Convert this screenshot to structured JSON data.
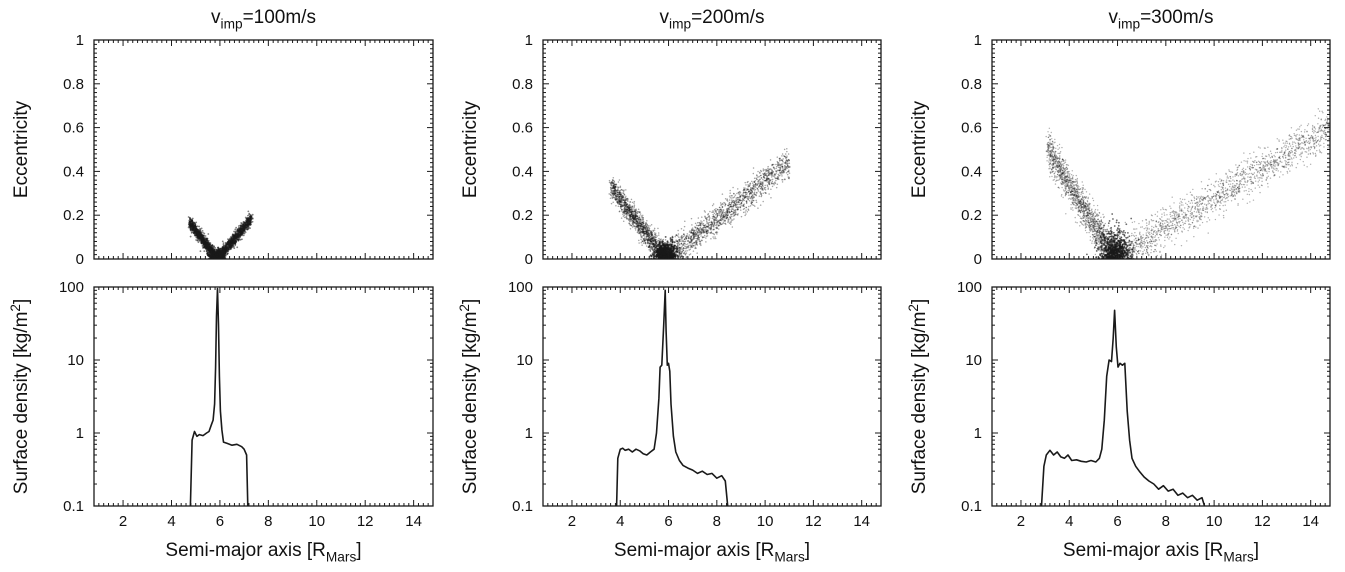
{
  "figure": {
    "ink_color": "#1a1a1a",
    "background": "#ffffff"
  },
  "chart_data": [
    {
      "type": "scatter",
      "panel": "top",
      "column": 0,
      "title_prefix": "v",
      "title_sub": "imp",
      "title_suffix": "=100m/s",
      "ylabel": "Eccentricity",
      "xlim": [
        0.8,
        14.8
      ],
      "ylim": [
        0,
        1
      ],
      "xticks": [
        2,
        4,
        6,
        8,
        10,
        12,
        14
      ],
      "yticks": [
        0,
        0.2,
        0.4,
        0.6,
        0.8,
        1
      ],
      "ytick_labels": [
        "0",
        "0.2",
        "0.4",
        "0.6",
        "0.8",
        "1"
      ],
      "show_xtick_labels": false,
      "grid": false,
      "point_cloud": {
        "center_a": 5.9,
        "center_e": 0.0,
        "left_arm": {
          "end_a": 4.75,
          "end_e": 0.165,
          "width_e": 0.03
        },
        "right_arm": {
          "end_a": 7.3,
          "end_e": 0.185,
          "width_e": 0.03
        },
        "core": {
          "half_width_a": 0.3,
          "max_e": 0.03
        },
        "density": "dense"
      }
    },
    {
      "type": "line",
      "panel": "bottom",
      "column": 0,
      "ylabel": "Surface density [kg/m",
      "ylabel_sup": "2",
      "ylabel_tail": "]",
      "xlabel": "Semi-major axis [R",
      "xlabel_sub": "Mars",
      "xlabel_tail": "]",
      "yscale": "log",
      "xlim": [
        0.8,
        14.8
      ],
      "ylim": [
        0.1,
        100
      ],
      "xticks": [
        2,
        4,
        6,
        8,
        10,
        12,
        14
      ],
      "xtick_labels": [
        "2",
        "4",
        "6",
        "8",
        "10",
        "12",
        "14"
      ],
      "yticks": [
        0.1,
        1,
        10,
        100
      ],
      "ytick_labels": [
        "0.1",
        "1",
        "10",
        "100"
      ],
      "grid": false,
      "series": [
        {
          "x": [
            4.78,
            4.85,
            4.95,
            5.05,
            5.15,
            5.3,
            5.45,
            5.55,
            5.65,
            5.72,
            5.78,
            5.82,
            5.86,
            5.9,
            5.94,
            5.98,
            6.02,
            6.08,
            6.15,
            6.3,
            6.5,
            6.7,
            6.9,
            7.0,
            7.1,
            7.15
          ],
          "y": [
            0.1,
            0.8,
            1.05,
            0.9,
            0.95,
            0.92,
            1.0,
            1.05,
            1.3,
            1.5,
            2.5,
            8,
            40,
            95,
            30,
            6,
            2,
            1.1,
            0.75,
            0.72,
            0.68,
            0.7,
            0.65,
            0.6,
            0.5,
            0.1
          ]
        }
      ]
    },
    {
      "type": "scatter",
      "panel": "top",
      "column": 1,
      "title_prefix": "v",
      "title_sub": "imp",
      "title_suffix": "=200m/s",
      "ylabel": "Eccentricity",
      "xlim": [
        0.8,
        14.8
      ],
      "ylim": [
        0,
        1
      ],
      "xticks": [
        2,
        4,
        6,
        8,
        10,
        12,
        14
      ],
      "yticks": [
        0,
        0.2,
        0.4,
        0.6,
        0.8,
        1
      ],
      "ytick_labels": [
        "0",
        "0.2",
        "0.4",
        "0.6",
        "0.8",
        "1"
      ],
      "show_xtick_labels": false,
      "grid": false,
      "point_cloud": {
        "center_a": 5.9,
        "center_e": 0.0,
        "left_arm": {
          "end_a": 3.6,
          "end_e": 0.33,
          "width_e": 0.06
        },
        "right_arm": {
          "end_a": 11.0,
          "end_e": 0.44,
          "width_e": 0.07
        },
        "core": {
          "half_width_a": 0.5,
          "max_e": 0.07
        },
        "density": "medium"
      }
    },
    {
      "type": "line",
      "panel": "bottom",
      "column": 1,
      "ylabel": "Surface density [kg/m",
      "ylabel_sup": "2",
      "ylabel_tail": "]",
      "xlabel": "Semi-major axis [R",
      "xlabel_sub": "Mars",
      "xlabel_tail": "]",
      "yscale": "log",
      "xlim": [
        0.8,
        14.8
      ],
      "ylim": [
        0.1,
        100
      ],
      "xticks": [
        2,
        4,
        6,
        8,
        10,
        12,
        14
      ],
      "xtick_labels": [
        "2",
        "4",
        "6",
        "8",
        "10",
        "12",
        "14"
      ],
      "yticks": [
        0.1,
        1,
        10,
        100
      ],
      "ytick_labels": [
        "0.1",
        "1",
        "10",
        "100"
      ],
      "grid": false,
      "series": [
        {
          "x": [
            3.85,
            3.9,
            4.0,
            4.1,
            4.2,
            4.35,
            4.5,
            4.65,
            4.8,
            4.95,
            5.1,
            5.25,
            5.4,
            5.5,
            5.6,
            5.65,
            5.72,
            5.8,
            5.86,
            5.9,
            5.95,
            6.0,
            6.05,
            6.1,
            6.2,
            6.3,
            6.45,
            6.6,
            6.8,
            7.0,
            7.2,
            7.4,
            7.6,
            7.8,
            8.0,
            8.2,
            8.35,
            8.45
          ],
          "y": [
            0.1,
            0.45,
            0.6,
            0.62,
            0.58,
            0.6,
            0.55,
            0.6,
            0.57,
            0.52,
            0.5,
            0.55,
            0.6,
            1.0,
            3.0,
            8.0,
            8.5,
            30,
            90,
            25,
            8.5,
            9,
            7,
            2.5,
            0.9,
            0.55,
            0.42,
            0.36,
            0.33,
            0.31,
            0.28,
            0.3,
            0.27,
            0.28,
            0.24,
            0.26,
            0.22,
            0.1
          ]
        }
      ]
    },
    {
      "type": "scatter",
      "panel": "top",
      "column": 2,
      "title_prefix": "v",
      "title_sub": "imp",
      "title_suffix": "=300m/s",
      "ylabel": "Eccentricity",
      "xlim": [
        0.8,
        14.8
      ],
      "ylim": [
        0,
        1
      ],
      "xticks": [
        2,
        4,
        6,
        8,
        10,
        12,
        14
      ],
      "yticks": [
        0,
        0.2,
        0.4,
        0.6,
        0.8,
        1
      ],
      "ytick_labels": [
        "0",
        "0.2",
        "0.4",
        "0.6",
        "0.8",
        "1"
      ],
      "show_xtick_labels": false,
      "grid": false,
      "point_cloud": {
        "center_a": 5.9,
        "center_e": 0.0,
        "left_arm": {
          "end_a": 3.1,
          "end_e": 0.5,
          "width_e": 0.09
        },
        "right_arm": {
          "end_a": 14.8,
          "end_e": 0.6,
          "width_e": 0.1
        },
        "core": {
          "half_width_a": 0.7,
          "max_e": 0.12
        },
        "density": "sparse"
      }
    },
    {
      "type": "line",
      "panel": "bottom",
      "column": 2,
      "ylabel": "Surface density [kg/m",
      "ylabel_sup": "2",
      "ylabel_tail": "]",
      "xlabel": "Semi-major axis [R",
      "xlabel_sub": "Mars",
      "xlabel_tail": "]",
      "yscale": "log",
      "xlim": [
        0.8,
        14.8
      ],
      "ylim": [
        0.1,
        100
      ],
      "xticks": [
        2,
        4,
        6,
        8,
        10,
        12,
        14
      ],
      "xtick_labels": [
        "2",
        "4",
        "6",
        "8",
        "10",
        "12",
        "14"
      ],
      "yticks": [
        0.1,
        1,
        10,
        100
      ],
      "ytick_labels": [
        "0.1",
        "1",
        "10",
        "100"
      ],
      "grid": false,
      "series": [
        {
          "x": [
            2.85,
            2.95,
            3.05,
            3.2,
            3.35,
            3.5,
            3.65,
            3.8,
            3.95,
            4.1,
            4.3,
            4.5,
            4.7,
            4.9,
            5.1,
            5.25,
            5.35,
            5.45,
            5.55,
            5.65,
            5.75,
            5.82,
            5.88,
            5.95,
            6.02,
            6.1,
            6.2,
            6.3,
            6.4,
            6.5,
            6.6,
            6.75,
            6.9,
            7.1,
            7.3,
            7.5,
            7.7,
            7.9,
            8.1,
            8.3,
            8.5,
            8.7,
            8.9,
            9.1,
            9.3,
            9.5,
            9.6
          ],
          "y": [
            0.1,
            0.35,
            0.5,
            0.58,
            0.5,
            0.55,
            0.47,
            0.45,
            0.5,
            0.42,
            0.43,
            0.41,
            0.4,
            0.42,
            0.4,
            0.45,
            0.6,
            1.5,
            6,
            10,
            9.5,
            20,
            48,
            15,
            8,
            9,
            8.5,
            9,
            2.0,
            0.8,
            0.45,
            0.35,
            0.3,
            0.25,
            0.22,
            0.2,
            0.17,
            0.19,
            0.16,
            0.17,
            0.14,
            0.15,
            0.13,
            0.14,
            0.12,
            0.13,
            0.1
          ]
        }
      ]
    }
  ]
}
